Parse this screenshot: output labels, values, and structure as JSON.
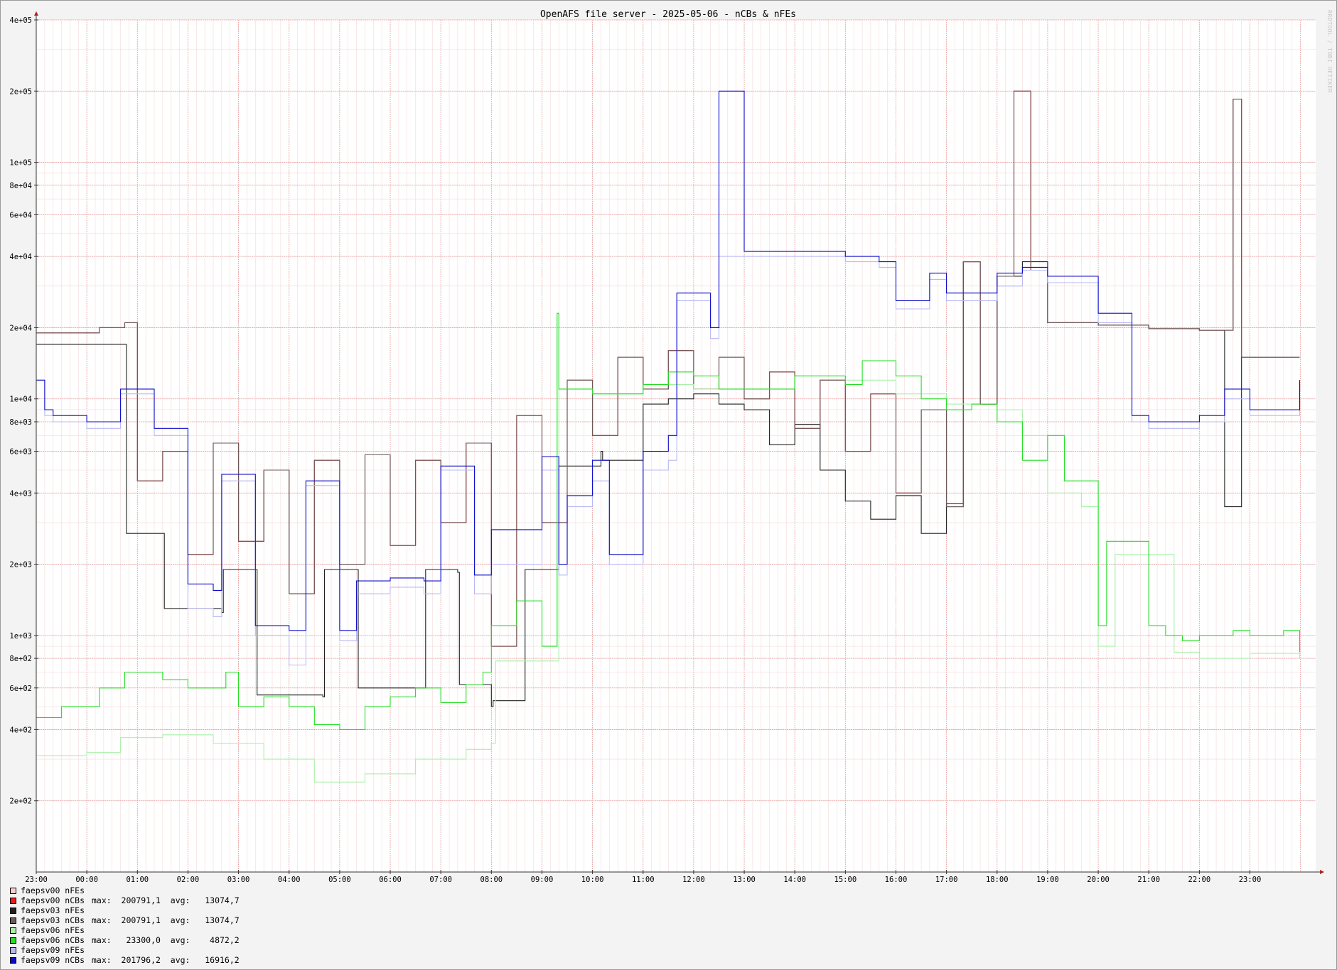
{
  "chart_data": {
    "type": "line",
    "title": "OpenAFS file server - 2025-05-06 - nCBs & nFEs",
    "xlabel": "",
    "ylabel": "",
    "yscale": "log",
    "ylim": [
      100,
      400000
    ],
    "grid": true,
    "legend_position": "bottom-left",
    "x_ticks": [
      "23:00",
      "00:00",
      "01:00",
      "02:00",
      "03:00",
      "04:00",
      "05:00",
      "06:00",
      "07:00",
      "08:00",
      "09:00",
      "10:00",
      "11:00",
      "12:00",
      "13:00",
      "14:00",
      "15:00",
      "16:00",
      "17:00",
      "18:00",
      "19:00",
      "20:00",
      "21:00",
      "22:00",
      "23:00"
    ],
    "y_ticks": [
      {
        "value": 200,
        "label": "2e+02"
      },
      {
        "value": 400,
        "label": "4e+02"
      },
      {
        "value": 600,
        "label": "6e+02"
      },
      {
        "value": 800,
        "label": "8e+02"
      },
      {
        "value": 1000,
        "label": "1e+03"
      },
      {
        "value": 2000,
        "label": "2e+03"
      },
      {
        "value": 4000,
        "label": "4e+03"
      },
      {
        "value": 6000,
        "label": "6e+03"
      },
      {
        "value": 8000,
        "label": "8e+03"
      },
      {
        "value": 10000,
        "label": "1e+04"
      },
      {
        "value": 20000,
        "label": "2e+04"
      },
      {
        "value": 40000,
        "label": "4e+04"
      },
      {
        "value": 60000,
        "label": "6e+04"
      },
      {
        "value": 80000,
        "label": "8e+04"
      },
      {
        "value": 100000,
        "label": "1e+05"
      },
      {
        "value": 200000,
        "label": "2e+05"
      },
      {
        "value": 400000,
        "label": "4e+05"
      }
    ],
    "series": [
      {
        "name": "faepsv00 nFEs",
        "color": "#f8d0d0",
        "legend_stats": "",
        "x": [
          "23:00",
          "23:30",
          "00:15",
          "00:45",
          "01:00",
          "01:30",
          "02:00",
          "02:30",
          "03:00",
          "03:30",
          "04:00",
          "04:30",
          "05:00",
          "05:30",
          "06:00",
          "06:30",
          "07:00",
          "07:30",
          "08:00",
          "08:30",
          "09:00",
          "09:30",
          "10:00",
          "10:30",
          "11:00",
          "11:30",
          "12:00",
          "12:30",
          "13:00",
          "13:30",
          "14:00",
          "14:30",
          "15:00",
          "15:30",
          "16:00",
          "16:30",
          "17:00",
          "17:20",
          "17:40",
          "18:00",
          "18:20",
          "18:40",
          "19:00",
          "20:00",
          "21:00",
          "22:00",
          "22:40",
          "22:50",
          "23:00",
          "23:59"
        ],
        "values": [
          19000,
          19000,
          20000,
          21000,
          4500,
          6000,
          2200,
          6500,
          2500,
          5000,
          1500,
          5500,
          2000,
          5800,
          2400,
          5500,
          3000,
          6500,
          900,
          8500,
          3000,
          12000,
          7000,
          15000,
          11000,
          16000,
          11000,
          15000,
          10000,
          13000,
          7500,
          12000,
          6000,
          10500,
          4000,
          9000,
          3500,
          38000,
          9500,
          33000,
          200000,
          35000,
          21000,
          20500,
          19800,
          19500,
          185000,
          15000,
          15000,
          15000
        ]
      },
      {
        "name": "faepsv00 nCBs",
        "color": "#e81c1c",
        "legend_stats": "max:  200791,1  avg:   13074,7",
        "x": [
          "23:00",
          "23:30",
          "00:15",
          "00:45",
          "01:00",
          "01:30",
          "02:00",
          "02:30",
          "03:00",
          "03:30",
          "04:00",
          "04:30",
          "05:00",
          "05:30",
          "06:00",
          "06:30",
          "07:00",
          "07:30",
          "08:00",
          "08:30",
          "09:00",
          "09:30",
          "10:00",
          "10:30",
          "11:00",
          "11:30",
          "12:00",
          "12:30",
          "13:00",
          "13:30",
          "14:00",
          "14:30",
          "15:00",
          "15:30",
          "16:00",
          "16:30",
          "17:00",
          "17:20",
          "17:40",
          "18:00",
          "18:20",
          "18:40",
          "19:00",
          "20:00",
          "21:00",
          "22:00",
          "22:40",
          "22:50",
          "23:00",
          "23:59"
        ],
        "values": [
          19000,
          19000,
          20000,
          21000,
          4500,
          6000,
          2200,
          6500,
          2500,
          5000,
          1500,
          5500,
          2000,
          5800,
          2400,
          5500,
          3000,
          6500,
          900,
          8500,
          3000,
          12000,
          7000,
          15000,
          11000,
          16000,
          11000,
          15000,
          10000,
          13000,
          7500,
          12000,
          6000,
          10500,
          4000,
          9000,
          3500,
          38000,
          9500,
          33000,
          200000,
          35000,
          21000,
          20500,
          19800,
          19500,
          185000,
          15000,
          15000,
          15000
        ]
      },
      {
        "name": "faepsv03 nFEs",
        "color": "#202020",
        "legend_stats": "",
        "x": [
          "23:00",
          "00:45",
          "00:47",
          "01:30",
          "01:32",
          "02:40",
          "02:42",
          "03:20",
          "03:22",
          "04:40",
          "04:42",
          "05:20",
          "05:22",
          "06:40",
          "06:42",
          "07:20",
          "07:22",
          "08:00",
          "08:02",
          "08:40",
          "08:42",
          "09:20",
          "09:22",
          "10:10",
          "10:12",
          "11:00",
          "11:30",
          "12:00",
          "12:30",
          "13:00",
          "13:30",
          "14:00",
          "14:30",
          "15:00",
          "15:30",
          "16:00",
          "16:30",
          "17:00",
          "17:20",
          "17:40",
          "18:00",
          "18:30",
          "19:00",
          "20:00",
          "21:00",
          "22:00",
          "22:30",
          "22:50",
          "23:00",
          "23:59"
        ],
        "values": [
          17000,
          17000,
          2700,
          2700,
          1300,
          1250,
          1900,
          1900,
          560,
          550,
          1900,
          1900,
          600,
          600,
          1900,
          1850,
          620,
          500,
          530,
          1900,
          1900,
          5200,
          5200,
          6000,
          5500,
          9500,
          10000,
          10500,
          9500,
          9000,
          6400,
          7800,
          5000,
          3700,
          3100,
          3900,
          2700,
          3600,
          38000,
          9500,
          33000,
          38000,
          21000,
          20500,
          19800,
          19500,
          3500,
          15000,
          15000,
          15000
        ]
      },
      {
        "name": "faepsv03 nCBs",
        "color": "#6a5a5a",
        "legend_stats": "max:  200791,1  avg:   13074,7",
        "x": [
          "23:00",
          "23:30",
          "00:15",
          "00:45",
          "01:00",
          "01:30",
          "02:00",
          "02:30",
          "03:00",
          "03:30",
          "04:00",
          "04:30",
          "05:00",
          "05:30",
          "06:00",
          "06:30",
          "07:00",
          "07:30",
          "08:00",
          "08:30",
          "09:00",
          "09:30",
          "10:00",
          "10:30",
          "11:00",
          "11:30",
          "12:00",
          "12:30",
          "13:00",
          "13:30",
          "14:00",
          "14:30",
          "15:00",
          "15:30",
          "16:00",
          "16:30",
          "17:00",
          "17:20",
          "17:40",
          "18:00",
          "18:20",
          "18:40",
          "19:00",
          "20:00",
          "21:00",
          "22:00",
          "22:40",
          "22:50",
          "23:00",
          "23:59"
        ],
        "values": [
          19000,
          19000,
          20000,
          21000,
          4500,
          6000,
          2200,
          6500,
          2500,
          5000,
          1500,
          5500,
          2000,
          5800,
          2400,
          5500,
          3000,
          6500,
          900,
          8500,
          3000,
          12000,
          7000,
          15000,
          11000,
          16000,
          11000,
          15000,
          10000,
          13000,
          7500,
          12000,
          6000,
          10500,
          4000,
          9000,
          3500,
          38000,
          9500,
          33000,
          200000,
          35000,
          21000,
          20500,
          19800,
          19500,
          185000,
          15000,
          15000,
          15000
        ]
      },
      {
        "name": "faepsv06 nFEs",
        "color": "#a8f0a8",
        "legend_stats": "",
        "x": [
          "23:00",
          "00:00",
          "00:40",
          "01:30",
          "02:30",
          "03:30",
          "04:30",
          "05:30",
          "06:30",
          "07:30",
          "08:00",
          "08:05",
          "09:00",
          "09:20",
          "10:00",
          "11:00",
          "12:00",
          "13:00",
          "14:00",
          "15:00",
          "16:00",
          "17:00",
          "18:00",
          "18:30",
          "19:00",
          "19:40",
          "20:00",
          "20:20",
          "21:00",
          "21:30",
          "22:00",
          "23:00",
          "23:59"
        ],
        "values": [
          310,
          320,
          370,
          380,
          350,
          300,
          240,
          260,
          300,
          330,
          350,
          780,
          780,
          11000,
          10500,
          11500,
          11000,
          11000,
          12500,
          12000,
          10500,
          9500,
          9000,
          7000,
          4000,
          3500,
          900,
          2200,
          2200,
          850,
          800,
          840,
          800
        ]
      },
      {
        "name": "faepsv06 nCBs",
        "color": "#22dd22",
        "legend_stats": "max:   23300,0  avg:    4872,2",
        "x": [
          "23:00",
          "23:30",
          "00:15",
          "00:45",
          "01:30",
          "02:00",
          "02:45",
          "03:00",
          "03:30",
          "04:00",
          "04:30",
          "05:00",
          "05:30",
          "06:00",
          "06:30",
          "07:00",
          "07:30",
          "07:50",
          "08:00",
          "08:30",
          "09:00",
          "09:18",
          "09:20",
          "10:00",
          "11:00",
          "11:30",
          "12:00",
          "12:30",
          "13:00",
          "14:00",
          "14:30",
          "15:00",
          "15:20",
          "16:00",
          "16:30",
          "17:00",
          "17:30",
          "18:00",
          "18:30",
          "19:00",
          "19:20",
          "19:50",
          "20:00",
          "20:10",
          "20:30",
          "21:00",
          "21:20",
          "21:40",
          "22:00",
          "22:40",
          "23:00",
          "23:40",
          "23:59"
        ],
        "values": [
          450,
          500,
          600,
          700,
          650,
          600,
          700,
          500,
          550,
          500,
          420,
          400,
          500,
          550,
          600,
          520,
          620,
          700,
          1100,
          1400,
          900,
          23000,
          11000,
          10500,
          11500,
          13000,
          12500,
          11000,
          11000,
          12500,
          12500,
          11500,
          14500,
          12500,
          10000,
          9000,
          9500,
          8000,
          5500,
          7000,
          4500,
          4500,
          1100,
          2500,
          2500,
          1100,
          1000,
          950,
          1000,
          1050,
          1000,
          1050,
          850
        ]
      },
      {
        "name": "faepsv09 nFEs",
        "color": "#b8b8f4",
        "legend_stats": "",
        "x": [
          "23:00",
          "23:10",
          "23:20",
          "00:00",
          "00:40",
          "01:00",
          "01:20",
          "02:00",
          "02:30",
          "02:40",
          "03:00",
          "03:20",
          "04:00",
          "04:20",
          "05:00",
          "05:20",
          "06:00",
          "06:40",
          "07:00",
          "07:40",
          "08:00",
          "09:00",
          "09:20",
          "09:30",
          "10:00",
          "10:20",
          "11:00",
          "11:30",
          "11:40",
          "12:00",
          "12:20",
          "12:30",
          "13:00",
          "14:00",
          "15:00",
          "15:40",
          "16:00",
          "16:40",
          "17:00",
          "18:00",
          "18:30",
          "19:00",
          "20:00",
          "20:40",
          "21:00",
          "22:00",
          "22:30",
          "23:00",
          "23:59"
        ],
        "values": [
          12000,
          8500,
          8000,
          7500,
          10500,
          10500,
          7000,
          1300,
          1200,
          4500,
          4500,
          1000,
          750,
          4300,
          950,
          1500,
          1600,
          1500,
          5000,
          1500,
          2000,
          5000,
          1800,
          3500,
          4500,
          2000,
          5000,
          5500,
          26000,
          26000,
          18000,
          40000,
          40000,
          40000,
          38000,
          36000,
          24000,
          32000,
          26000,
          30000,
          35000,
          31000,
          21000,
          8000,
          7500,
          8000,
          10000,
          8500,
          11000
        ]
      },
      {
        "name": "faepsv09 nCBs",
        "color": "#0a0ac8",
        "legend_stats": "max:  201796,2  avg:   16916,2",
        "x": [
          "23:00",
          "23:10",
          "23:20",
          "00:00",
          "00:40",
          "01:00",
          "01:20",
          "02:00",
          "02:30",
          "02:40",
          "03:00",
          "03:20",
          "04:00",
          "04:20",
          "05:00",
          "05:20",
          "06:00",
          "06:40",
          "07:00",
          "07:40",
          "08:00",
          "09:00",
          "09:20",
          "09:30",
          "10:00",
          "10:20",
          "11:00",
          "11:30",
          "11:40",
          "12:00",
          "12:20",
          "12:30",
          "13:00",
          "14:00",
          "15:00",
          "15:40",
          "16:00",
          "16:40",
          "17:00",
          "18:00",
          "18:30",
          "19:00",
          "20:00",
          "20:40",
          "21:00",
          "22:00",
          "22:30",
          "23:00",
          "23:59"
        ],
        "values": [
          12000,
          9000,
          8500,
          8000,
          11000,
          11000,
          7500,
          1650,
          1550,
          4800,
          4800,
          1100,
          1050,
          4500,
          1050,
          1700,
          1750,
          1700,
          5200,
          1800,
          2800,
          5700,
          2000,
          3900,
          5500,
          2200,
          6000,
          7000,
          28000,
          28000,
          20000,
          200000,
          42000,
          42000,
          40000,
          38000,
          26000,
          34000,
          28000,
          34000,
          36000,
          33000,
          23000,
          8500,
          8000,
          8500,
          11000,
          9000,
          12000
        ]
      }
    ]
  },
  "watermark": "RRDTOOL / TOBI OETIKER"
}
